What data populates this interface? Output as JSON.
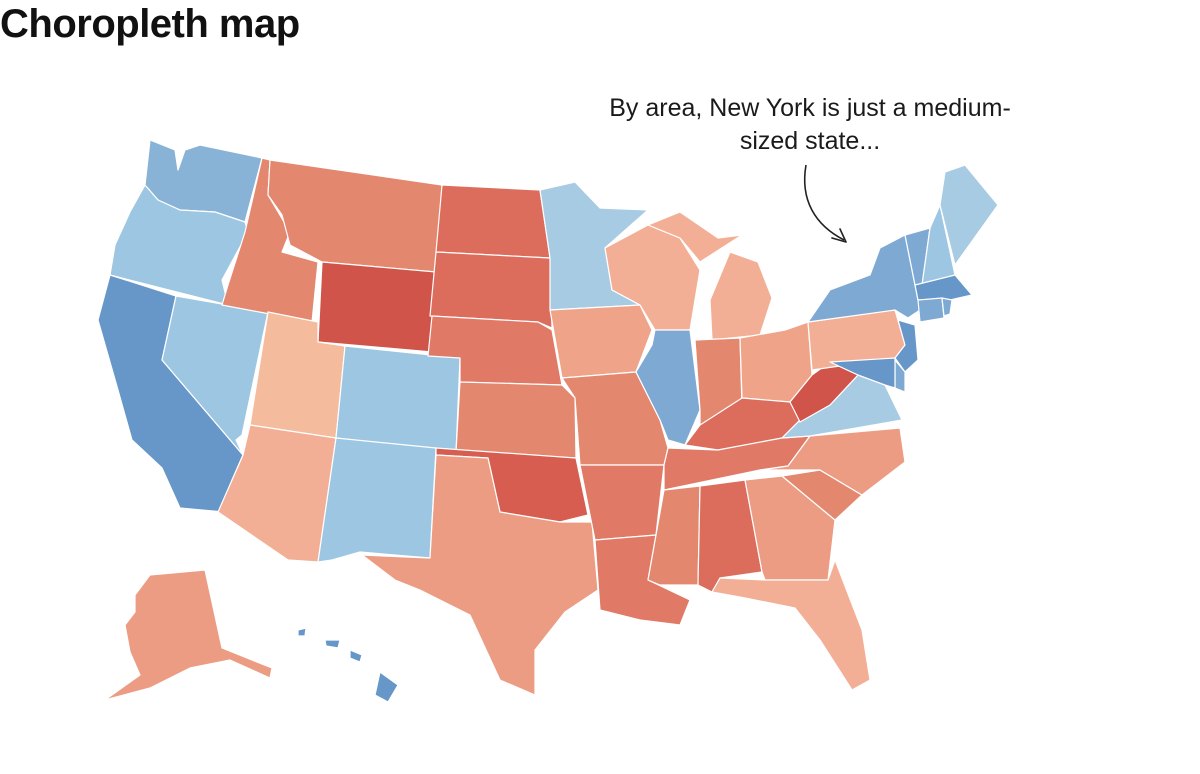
{
  "title": "Choropleth map",
  "annotation": {
    "line1": "By area, New York is just a medium-",
    "line2": "sized state..."
  },
  "colors": {
    "very_dark_red": "#d05449",
    "dark_red": "#dc6d5d",
    "red": "#e3876f",
    "light_red": "#ec9c83",
    "lighter_red": "#f3af95",
    "pale_red": "#f5bb9d",
    "light_blue": "#9dc6e2",
    "mid_blue": "#8fb9dc",
    "blue": "#7ea9d3",
    "dark_blue": "#6797c8",
    "arrow": "#222222"
  },
  "states": [
    {
      "id": "WA",
      "color": "#88b3d7"
    },
    {
      "id": "OR",
      "color": "#9dc6e2"
    },
    {
      "id": "CA",
      "color": "#6797c8"
    },
    {
      "id": "NV",
      "color": "#9dc6e2"
    },
    {
      "id": "ID",
      "color": "#e3876f"
    },
    {
      "id": "MT",
      "color": "#e3876f"
    },
    {
      "id": "WY",
      "color": "#d05449"
    },
    {
      "id": "UT",
      "color": "#f5bb9d"
    },
    {
      "id": "AZ",
      "color": "#f3af95"
    },
    {
      "id": "CO",
      "color": "#9dc6e2"
    },
    {
      "id": "NM",
      "color": "#9dc6e2"
    },
    {
      "id": "ND",
      "color": "#dc6d5d"
    },
    {
      "id": "SD",
      "color": "#dc6d5d"
    },
    {
      "id": "NE",
      "color": "#e07a66"
    },
    {
      "id": "KS",
      "color": "#e3876f"
    },
    {
      "id": "OK",
      "color": "#d65d50"
    },
    {
      "id": "TX",
      "color": "#ec9c83"
    },
    {
      "id": "MN",
      "color": "#a8cbe4"
    },
    {
      "id": "IA",
      "color": "#efa489"
    },
    {
      "id": "MO",
      "color": "#e3876f"
    },
    {
      "id": "AR",
      "color": "#e07a66"
    },
    {
      "id": "LA",
      "color": "#e07a66"
    },
    {
      "id": "WI",
      "color": "#f3af95"
    },
    {
      "id": "IL",
      "color": "#7ea9d3"
    },
    {
      "id": "MI",
      "color": "#f3af95"
    },
    {
      "id": "IN",
      "color": "#e3876f"
    },
    {
      "id": "OH",
      "color": "#efa489"
    },
    {
      "id": "KY",
      "color": "#dc6d5d"
    },
    {
      "id": "TN",
      "color": "#e07a66"
    },
    {
      "id": "MS",
      "color": "#e3876f"
    },
    {
      "id": "AL",
      "color": "#dc6d5d"
    },
    {
      "id": "GA",
      "color": "#ec9c83"
    },
    {
      "id": "FL",
      "color": "#f3af95"
    },
    {
      "id": "SC",
      "color": "#e3876f"
    },
    {
      "id": "NC",
      "color": "#ec9c83"
    },
    {
      "id": "VA",
      "color": "#a8cbe4"
    },
    {
      "id": "WV",
      "color": "#d05449"
    },
    {
      "id": "PA",
      "color": "#f3af95"
    },
    {
      "id": "NY",
      "color": "#7ea9d3"
    },
    {
      "id": "VT",
      "color": "#7ea9d3"
    },
    {
      "id": "NH",
      "color": "#9dc6e2"
    },
    {
      "id": "ME",
      "color": "#a8cbe4"
    },
    {
      "id": "MA",
      "color": "#6797c8"
    },
    {
      "id": "CT",
      "color": "#7ea9d3"
    },
    {
      "id": "RI",
      "color": "#7ea9d3"
    },
    {
      "id": "NJ",
      "color": "#6797c8"
    },
    {
      "id": "DE",
      "color": "#7ea9d3"
    },
    {
      "id": "MD",
      "color": "#6797c8"
    },
    {
      "id": "AK",
      "color": "#ec9c83"
    },
    {
      "id": "HI",
      "color": "#6797c8"
    }
  ]
}
